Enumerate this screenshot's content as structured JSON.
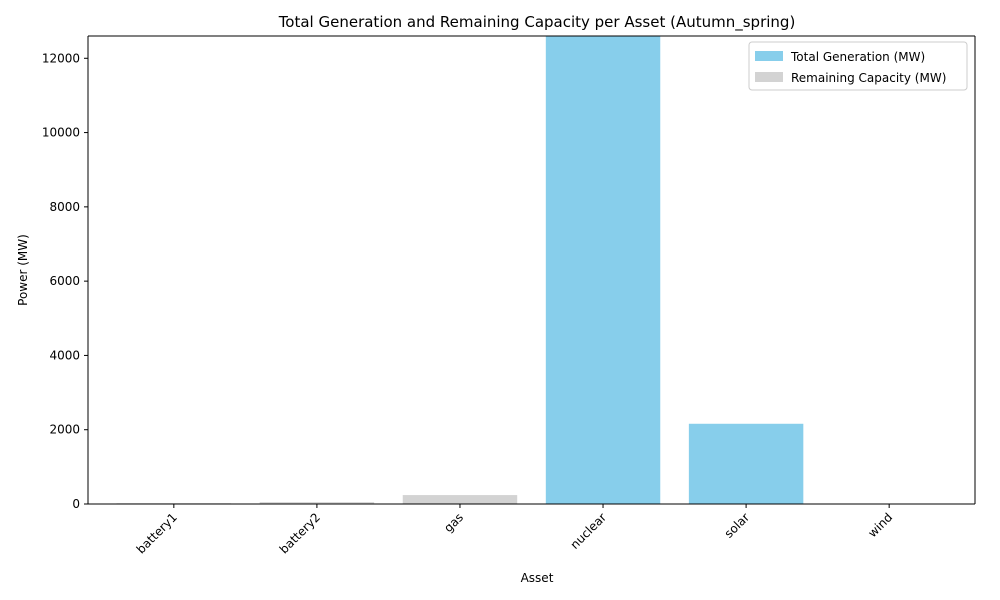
{
  "chart_data": {
    "type": "bar",
    "title": "Total Generation and Remaining Capacity per Asset (Autumn_spring)",
    "xlabel": "Asset",
    "ylabel": "Power (MW)",
    "categories": [
      "battery1",
      "battery2",
      "gas",
      "nuclear",
      "solar",
      "wind"
    ],
    "series": [
      {
        "name": "Total Generation (MW)",
        "color": "#87CEEB",
        "values": [
          0,
          0,
          0,
          12600,
          2160,
          0
        ]
      },
      {
        "name": "Remaining Capacity (MW)",
        "color": "#D3D3D3",
        "values": [
          20,
          50,
          240,
          0,
          0,
          0
        ]
      }
    ],
    "ylim": [
      0,
      12600
    ],
    "yticks": [
      0,
      2000,
      4000,
      6000,
      8000,
      10000,
      12000
    ],
    "stacked": true,
    "grid": false,
    "legend_position": "top-right"
  }
}
